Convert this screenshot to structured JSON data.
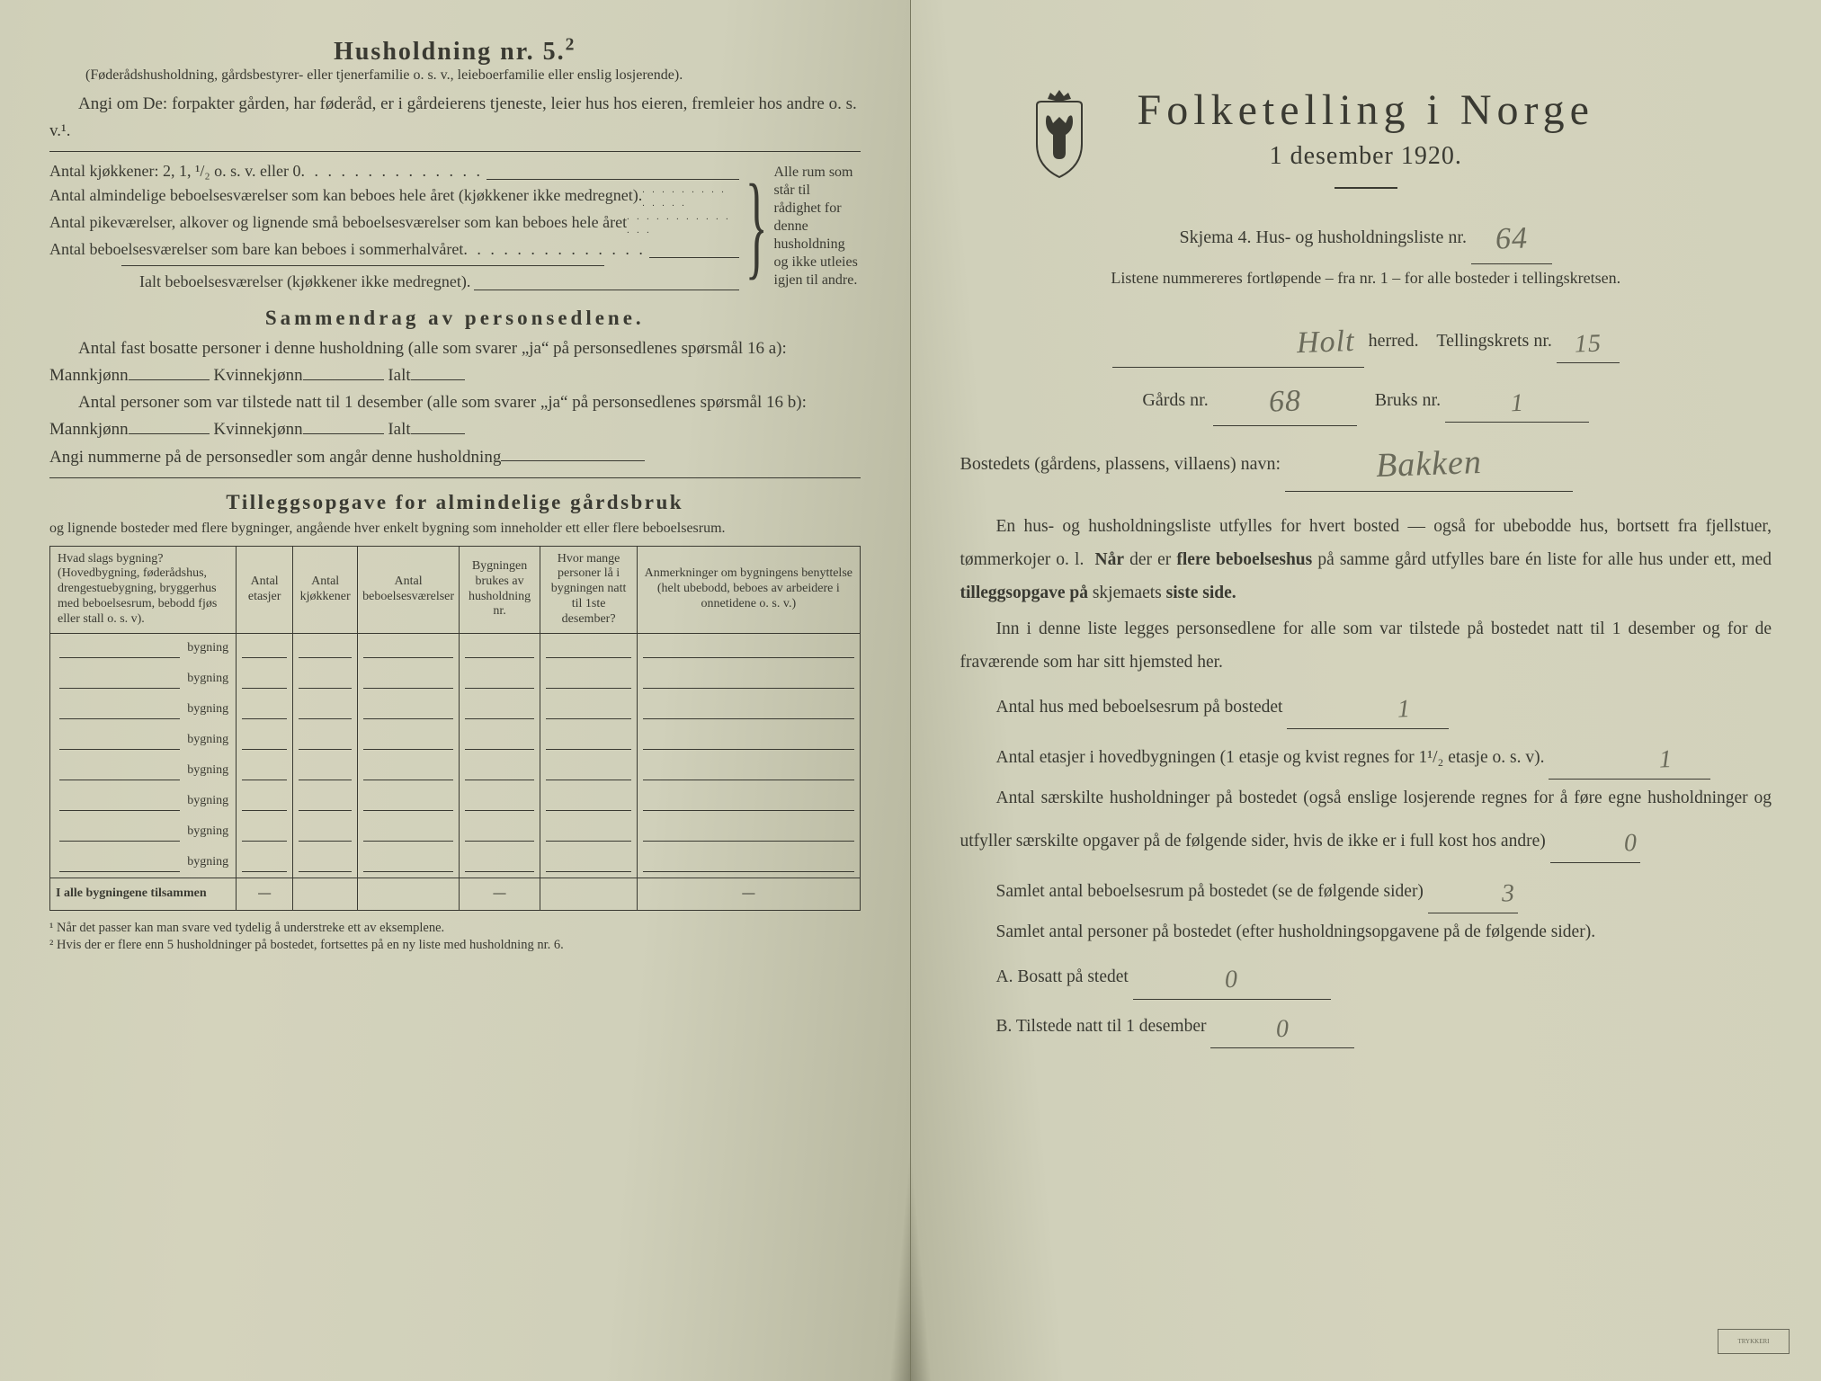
{
  "left": {
    "title": "Husholdning nr. 5.",
    "title_sup": "2",
    "intro_paren": "(Føderådshusholdning, gårdsbestyrer- eller tjenerfamilie o. s. v., leieboerfamilie eller enslig losjerende).",
    "intro_line": "Angi om De: forpakter gården, har føderåd, er i gårdeierens tjeneste, leier hus hos eieren, fremleier hos andre o. s. v.¹.",
    "kitchens_label": "Antal kjøkkener: 2, 1, ¹/₂ o. s. v. eller 0",
    "rooms": [
      "Antal almindelige beboelsesværelser som kan beboes hele året (kjøkkener ikke medregnet).",
      "Antal pikeværelser, alkover og lignende små beboelsesværelser som kan beboes hele året",
      "Antal beboelsesværelser som bare kan beboes i sommerhalvåret"
    ],
    "rooms_total": "Ialt beboelsesværelser  (kjøkkener ikke medregnet).",
    "brace_note": "Alle rum som står til rådighet for denne husholdning og ikke utleies igjen til andre.",
    "section_summary": "Sammendrag av personsedlene.",
    "sum_line1": "Antal fast bosatte personer i denne husholdning (alle som svarer „ja“ på personsedlenes spørsmål 16 a): Mannkjønn",
    "sum_kvin": "Kvinnekjønn",
    "sum_ialt": "Ialt",
    "sum_line2": "Antal personer som var tilstede natt til 1 desember (alle som svarer „ja“ på personsedlenes spørsmål 16 b): Mannkjønn",
    "sum_line3": "Angi nummerne på de personsedler som angår denne husholdning",
    "section_tillegg": "Tilleggsopgave for almindelige gårdsbruk",
    "tillegg_sub": "og lignende bosteder med flere bygninger, angående hver enkelt bygning som inneholder ett eller flere beboelsesrum.",
    "table": {
      "headers": [
        "Hvad slags bygning?\n(Hovedbygning, føderådshus, drengestuebygning, bryggerhus med beboelsesrum, bebodd fjøs eller stall o. s. v).",
        "Antal etasjer",
        "Antal kjøkkener",
        "Antal beboelsesværelser",
        "Bygningen brukes av husholdning nr.",
        "Hvor mange personer lå i bygningen natt til 1ste desember?",
        "Anmerkninger om bygningens benyttelse (helt ubebodd, beboes av arbeidere i onnetidene o. s. v.)"
      ],
      "row_label": "bygning",
      "num_rows": 8,
      "sum_row_label": "I alle bygningene tilsammen"
    },
    "footnote1": "¹ Når det passer kan man svare ved tydelig å understreke ett av eksemplene.",
    "footnote2": "² Hvis der er flere enn 5 husholdninger på bostedet, fortsettes på en ny liste med husholdning nr. 6."
  },
  "right": {
    "title": "Folketelling i Norge",
    "subtitle": "1 desember 1920.",
    "skjema": "Skjema 4.  Hus- og husholdningsliste nr.",
    "skjema_val": "64",
    "listene": "Listene nummereres fortløpende – fra nr. 1 – for alle bosteder i tellingskretsen.",
    "herred_val": "Holt",
    "herred_lbl": "herred.",
    "tkrets_lbl": "Tellingskrets nr.",
    "tkrets_val": "15",
    "gards_lbl": "Gårds nr.",
    "gards_val": "68",
    "bruks_lbl": "Bruks nr.",
    "bruks_val": "1",
    "bosted_lbl": "Bostedets (gårdens, plassens, villaens) navn:",
    "bosted_val": "Bakken",
    "para1": "En hus- og husholdningsliste utfylles for hvert bosted — også for ubebodde hus, bortsett fra fjellstuer, tømmerkojer o. l.  Når der er flere beboelseshus på samme gård utfylles bare én liste for alle hus under ett, med tilleggsopgave på skjemaets siste side.",
    "para2": "Inn i denne liste legges personsedlene for alle som var tilstede på bostedet natt til 1 desember og for de fraværende som har sitt hjemsted her.",
    "q1": "Antal hus med beboelsesrum på bostedet",
    "q1_val": "1",
    "q2": "Antal etasjer i hovedbygningen (1 etasje og kvist regnes for 1¹/₂ etasje o. s. v).",
    "q2_val": "1",
    "q3": "Antal særskilte husholdninger på bostedet (også enslige losjerende regnes for å føre egne husholdninger og utfyller særskilte opgaver på de følgende sider, hvis de ikke er i full kost hos andre)",
    "q3_val": "0",
    "q4": "Samlet antal beboelsesrum på bostedet (se de følgende sider)",
    "q4_val": "3",
    "q5": "Samlet antal personer på bostedet (efter husholdningsopgavene på de følgende sider).",
    "q5a_lbl": "A.  Bosatt på stedet",
    "q5a_val": "0",
    "q5b_lbl": "B.  Tilstede natt til 1 desember",
    "q5b_val": "0"
  },
  "colors": {
    "paper": "#d2d1ba",
    "ink": "#3a3a32",
    "pencil": "#6a6a5a"
  }
}
